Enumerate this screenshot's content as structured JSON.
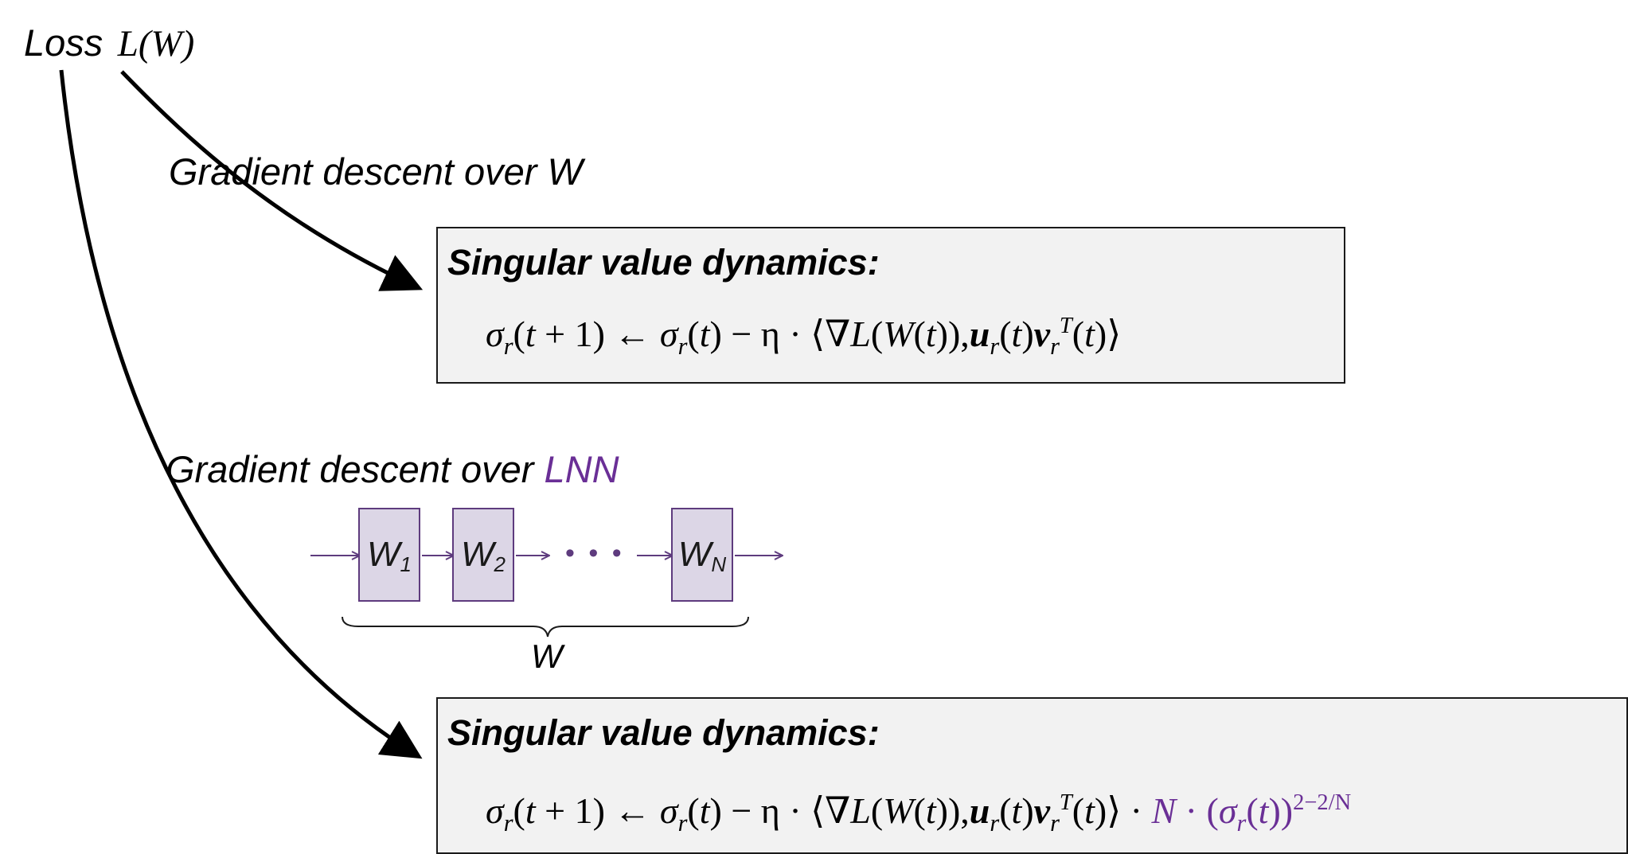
{
  "loss_label": {
    "word": "Loss",
    "symbol": "L(W)"
  },
  "branch_top": {
    "label": "Gradient descent over W"
  },
  "branch_bottom": {
    "label_prefix": "Gradient descent over ",
    "label_highlight": "LNN"
  },
  "box_top": {
    "title": "Singular value dynamics:"
  },
  "box_bottom": {
    "title": "Singular value dynamics:"
  },
  "network": {
    "layers": [
      {
        "name": "W",
        "sub": "1"
      },
      {
        "name": "W",
        "sub": "2"
      },
      {
        "name": "W",
        "sub": "N"
      }
    ],
    "ellipsis": "• • •",
    "brace_label": "W"
  },
  "equation": {
    "sigma": "σ",
    "r": "r",
    "open_paren": "(",
    "close_paren": ")",
    "t": "t",
    "plus_one": " + 1",
    "arrow": " ← ",
    "minus_eta": " − η · ",
    "langle": "⟨",
    "rangle": "⟩",
    "grad": "∇",
    "L": "L",
    "W": "W",
    "comma": ",",
    "u": "u",
    "v": "v",
    "T": "T",
    "factor_dot": " · ",
    "N": "N",
    "exponent": "2−2/N"
  },
  "colors": {
    "highlight": "#6a2f96",
    "box_fill": "#f2f2f2",
    "layer_fill": "#dcd6e6",
    "layer_stroke": "#5e3b7e"
  }
}
